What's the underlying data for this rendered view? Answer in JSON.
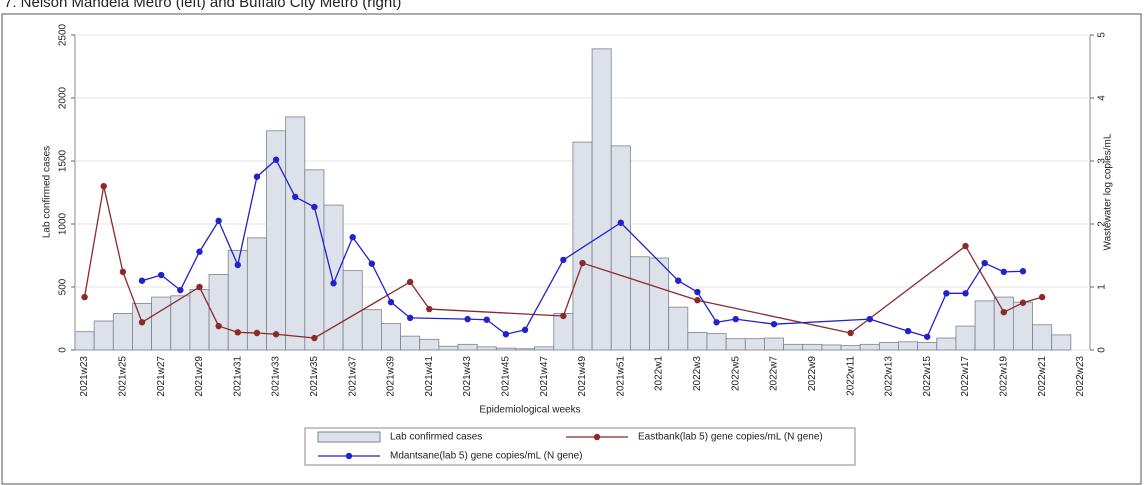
{
  "chart_data": {
    "type": "bar-line",
    "title": "7. Nelson Mandela Metro (left) and Buffalo City Metro (right)",
    "x_label": "Epidemiological weeks",
    "y_label": "Lab confirmed cases",
    "y2_label": "Wastewater log copies/mL",
    "categories": [
      "2021w23",
      null,
      "2021w25",
      null,
      "2021w27",
      null,
      "2021w29",
      null,
      "2021w31",
      null,
      "2021w33",
      null,
      "2021w35",
      null,
      "2021w37",
      null,
      "2021w39",
      null,
      "2021w41",
      null,
      "2021w43",
      null,
      "2021w45",
      null,
      "2021w47",
      null,
      "2021w49",
      null,
      "2021w51",
      null,
      "2022w1",
      null,
      "2022w3",
      null,
      "2022w5",
      null,
      "2022w7",
      null,
      "2022w9",
      null,
      "2022w11",
      null,
      "2022w13",
      null,
      "2022w15",
      null,
      "2022w17",
      null,
      "2022w19",
      null,
      "2022w21",
      null,
      "2022w23"
    ],
    "series": [
      {
        "name": "Lab confirmed cases",
        "type": "bar",
        "color": "#dde1e9",
        "values": [
          145,
          230,
          290,
          370,
          420,
          430,
          480,
          600,
          790,
          890,
          1740,
          1850,
          1430,
          1150,
          630,
          320,
          210,
          110,
          85,
          30,
          45,
          25,
          15,
          10,
          25,
          290,
          1650,
          2390,
          1620,
          740,
          730,
          340,
          140,
          130,
          90,
          90,
          95,
          45,
          45,
          40,
          35,
          45,
          60,
          65,
          60,
          95,
          190,
          390,
          420,
          380,
          200,
          120,
          null
        ]
      },
      {
        "name": "Eastbank(lab 5) gene copies/mL (N gene)",
        "type": "line",
        "axis": "y2",
        "color": "#8b2a2a",
        "values": [
          0.84,
          2.6,
          1.24,
          0.44,
          null,
          null,
          1.0,
          0.38,
          0.28,
          0.27,
          0.25,
          null,
          0.19,
          null,
          null,
          null,
          null,
          1.08,
          0.65,
          null,
          null,
          null,
          null,
          null,
          null,
          0.54,
          1.38,
          null,
          null,
          null,
          null,
          null,
          0.79,
          null,
          null,
          null,
          null,
          null,
          null,
          null,
          0.27,
          null,
          null,
          null,
          null,
          null,
          1.65,
          null,
          0.6,
          0.75,
          0.84,
          null,
          null
        ]
      },
      {
        "name": "Mdantsane(lab 5) gene copies/mL (N gene)",
        "type": "line",
        "axis": "y2",
        "color": "#2222cc",
        "values": [
          null,
          null,
          null,
          1.1,
          1.19,
          0.95,
          1.56,
          2.05,
          1.35,
          2.75,
          3.02,
          2.43,
          2.27,
          1.06,
          1.79,
          1.37,
          0.76,
          0.51,
          null,
          null,
          0.49,
          0.48,
          0.25,
          0.32,
          null,
          1.43,
          null,
          null,
          2.02,
          null,
          null,
          1.1,
          0.92,
          0.44,
          0.49,
          null,
          0.41,
          null,
          null,
          null,
          null,
          0.49,
          null,
          0.3,
          0.21,
          0.9,
          0.9,
          1.38,
          1.24,
          1.25,
          null,
          null,
          null
        ]
      }
    ],
    "ylim": [
      0,
      2500
    ],
    "yticks": [
      0,
      500,
      1000,
      1500,
      2000,
      2500
    ],
    "y2lim": [
      0,
      5
    ],
    "y2ticks": [
      0,
      1,
      2,
      3,
      4,
      5
    ],
    "grid": true
  }
}
